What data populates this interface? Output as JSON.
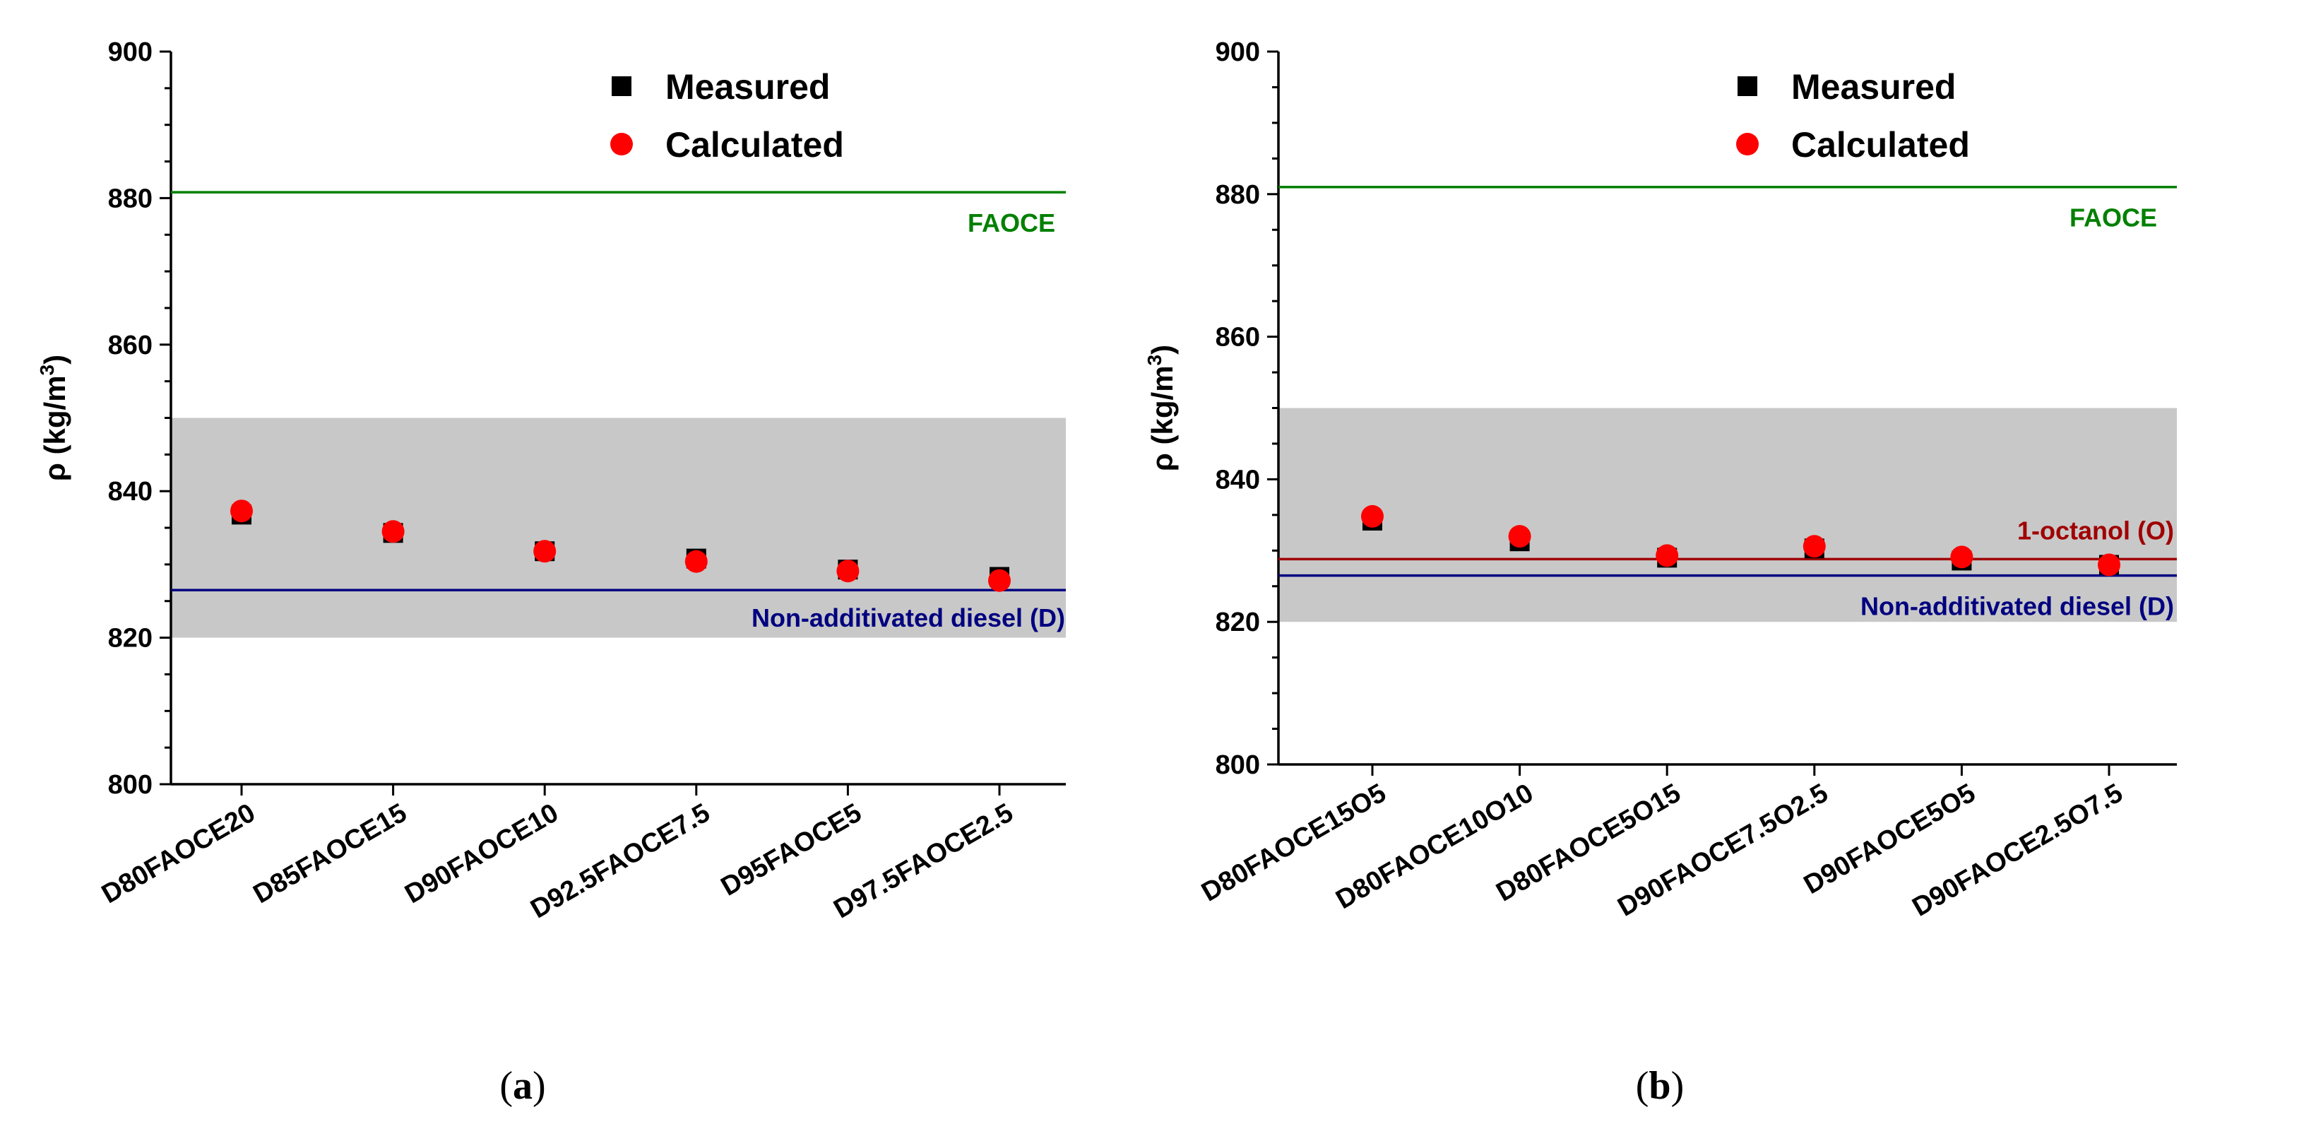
{
  "chart_data": [
    {
      "type": "scatter",
      "panel": "(a)",
      "ylabel": "ρ (kg/m3)",
      "ylim": [
        800,
        900
      ],
      "yticks": [
        800,
        820,
        840,
        860,
        880,
        900
      ],
      "categories": [
        "D80FAOCE20",
        "D85FAOCE15",
        "D90FAOCE10",
        "D92.5FAOCE7.5",
        "D95FAOCE5",
        "D97.5FAOCE2.5"
      ],
      "series": [
        {
          "name": "Measured",
          "marker": "square",
          "color": "#000000",
          "values": [
            836.8,
            834.3,
            831.8,
            830.8,
            829.3,
            828.3
          ]
        },
        {
          "name": "Calculated",
          "marker": "circle",
          "color": "#ff0000",
          "values": [
            837.3,
            834.5,
            831.8,
            830.4,
            829.1,
            827.8
          ]
        }
      ],
      "reference_lines": [
        {
          "label": "FAOCE",
          "value": 880.8,
          "color": "#008000"
        },
        {
          "label": "Non-additivated diesel (D)",
          "value": 826.5,
          "color": "#000080"
        }
      ],
      "shaded_band": {
        "from": 820,
        "to": 850,
        "color": "#c8c8c8"
      },
      "legend_position": "top-center"
    },
    {
      "type": "scatter",
      "panel": "(b)",
      "ylabel": "ρ (kg/m3)",
      "ylim": [
        800,
        900
      ],
      "yticks": [
        800,
        820,
        840,
        860,
        880,
        900
      ],
      "categories": [
        "D80FAOCE15O5",
        "D80FAOCE10O10",
        "D80FAOCE5O15",
        "D90FAOCE7.5O2.5",
        "D90FAOCE5O5",
        "D90FAOCE2.5O7.5"
      ],
      "series": [
        {
          "name": "Measured",
          "marker": "square",
          "color": "#000000",
          "values": [
            834.2,
            831.3,
            829.0,
            830.3,
            828.6,
            828.0
          ]
        },
        {
          "name": "Calculated",
          "marker": "circle",
          "color": "#ff0000",
          "values": [
            834.8,
            832.0,
            829.3,
            830.6,
            829.1,
            828.0
          ]
        }
      ],
      "reference_lines": [
        {
          "label": "FAOCE",
          "value": 881.0,
          "color": "#008000"
        },
        {
          "label": "1-octanol (O)",
          "value": 828.8,
          "color": "#a00000"
        },
        {
          "label": "Non-additivated diesel (D)",
          "value": 826.5,
          "color": "#000080"
        }
      ],
      "shaded_band": {
        "from": 820,
        "to": 850,
        "color": "#c8c8c8"
      },
      "legend_position": "top-center"
    }
  ]
}
